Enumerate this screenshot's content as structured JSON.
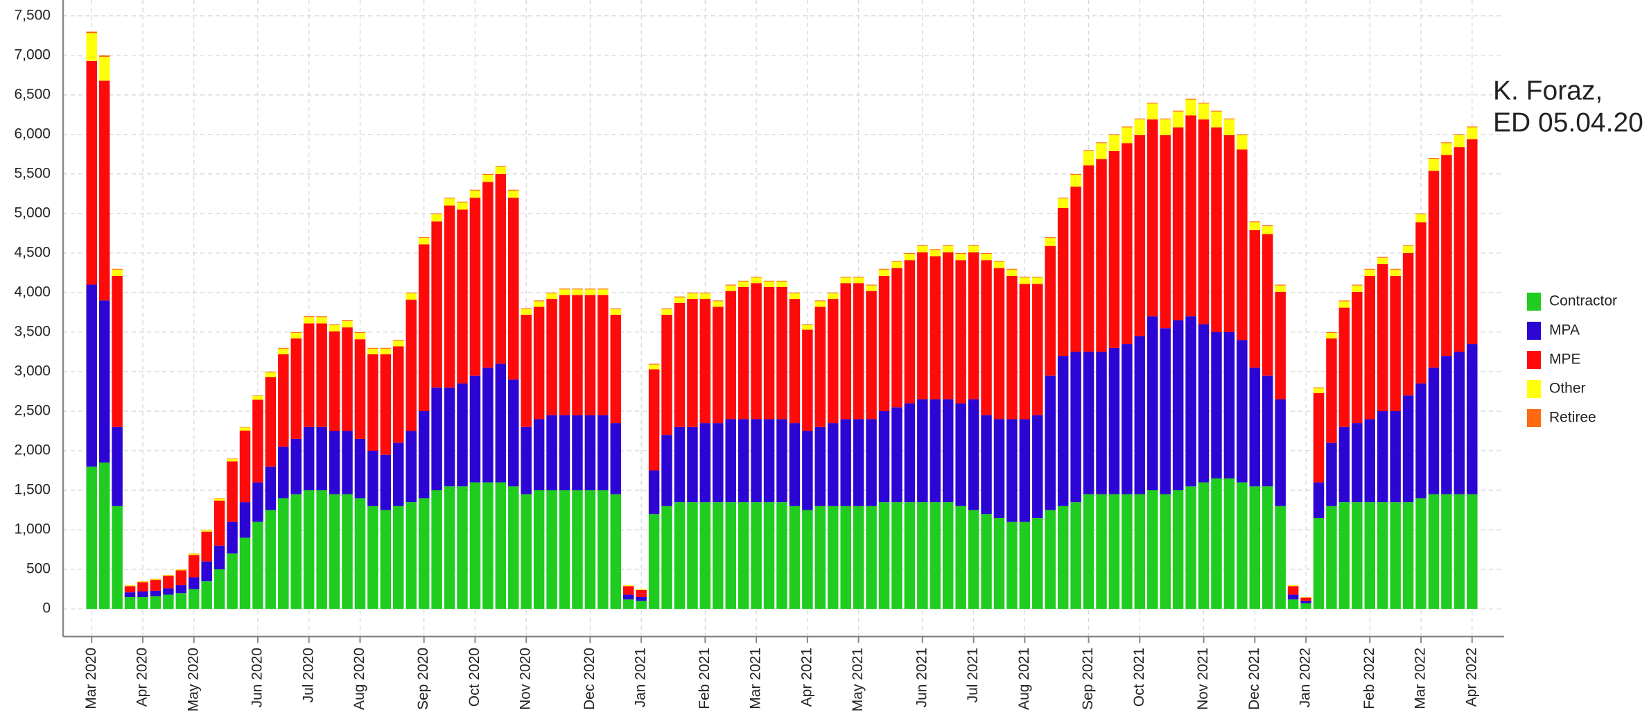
{
  "chart_data": {
    "type": "stacked_bar",
    "title": "K. Foraz,",
    "subtitle": "ED 05.04.20",
    "categories": [
      "Mar 2020",
      null,
      null,
      null,
      "Apr 2020",
      null,
      null,
      null,
      "May 2020",
      null,
      null,
      null,
      null,
      "Jun 2020",
      null,
      null,
      null,
      "Jul 2020",
      null,
      null,
      null,
      "Aug 2020",
      null,
      null,
      null,
      null,
      "Sep 2020",
      null,
      null,
      null,
      "Oct 2020",
      null,
      null,
      null,
      "Nov 2020",
      null,
      null,
      null,
      null,
      "Dec 2020",
      null,
      null,
      null,
      "Jan 2021",
      null,
      null,
      null,
      null,
      "Feb 2021",
      null,
      null,
      null,
      "Mar 2021",
      null,
      null,
      null,
      "Apr 2021",
      null,
      null,
      null,
      "May 2021",
      null,
      null,
      null,
      null,
      "Jun 2021",
      null,
      null,
      null,
      "Jul 2021",
      null,
      null,
      null,
      "Aug 2021",
      null,
      null,
      null,
      null,
      "Sep 2021",
      null,
      null,
      null,
      "Oct 2021",
      null,
      null,
      null,
      null,
      "Nov 2021",
      null,
      null,
      null,
      "Dec 2021",
      null,
      null,
      null,
      "Jan 2022",
      null,
      null,
      null,
      null,
      "Feb 2022",
      null,
      null,
      null,
      "Mar 2022",
      null,
      null,
      null,
      "Apr 2022"
    ],
    "series": [
      {
        "name": "Contractor",
        "color": "#1fcc1f",
        "values": [
          1800,
          1850,
          1300,
          150,
          150,
          160,
          180,
          200,
          250,
          350,
          500,
          700,
          900,
          1100,
          1250,
          1400,
          1450,
          1500,
          1500,
          1450,
          1450,
          1400,
          1300,
          1250,
          1300,
          1350,
          1400,
          1500,
          1550,
          1550,
          1600,
          1600,
          1600,
          1550,
          1450,
          1500,
          1500,
          1500,
          1500,
          1500,
          1500,
          1450,
          120,
          100,
          1200,
          1300,
          1350,
          1350,
          1350,
          1350,
          1350,
          1350,
          1350,
          1350,
          1350,
          1300,
          1250,
          1300,
          1300,
          1300,
          1300,
          1300,
          1350,
          1350,
          1350,
          1350,
          1350,
          1350,
          1300,
          1250,
          1200,
          1150,
          1100,
          1100,
          1150,
          1250,
          1300,
          1350,
          1450,
          1450,
          1450,
          1450,
          1450,
          1500,
          1450,
          1500,
          1550,
          1600,
          1650,
          1650,
          1600,
          1550,
          1550,
          1300,
          120,
          70,
          1150,
          1300,
          1350,
          1350,
          1350,
          1350,
          1350,
          1350,
          1400,
          1450,
          1450,
          1450,
          1450
        ]
      },
      {
        "name": "MPA",
        "color": "#2c05d4",
        "values": [
          2300,
          2050,
          1000,
          60,
          70,
          70,
          80,
          100,
          150,
          250,
          300,
          400,
          450,
          500,
          550,
          650,
          700,
          800,
          800,
          800,
          800,
          750,
          700,
          700,
          800,
          900,
          1100,
          1300,
          1250,
          1300,
          1350,
          1450,
          1500,
          1350,
          850,
          900,
          950,
          950,
          950,
          950,
          950,
          900,
          60,
          50,
          550,
          900,
          950,
          950,
          1000,
          1000,
          1050,
          1050,
          1050,
          1050,
          1050,
          1050,
          1000,
          1000,
          1050,
          1100,
          1100,
          1100,
          1150,
          1200,
          1250,
          1300,
          1300,
          1300,
          1300,
          1400,
          1250,
          1250,
          1300,
          1300,
          1300,
          1700,
          1900,
          1900,
          1800,
          1800,
          1850,
          1900,
          2000,
          2200,
          2100,
          2150,
          2150,
          2000,
          1850,
          1850,
          1800,
          1500,
          1400,
          1350,
          60,
          30,
          450,
          800,
          950,
          1000,
          1050,
          1150,
          1150,
          1350,
          1450,
          1600,
          1750,
          1800,
          1900
        ]
      },
      {
        "name": "MPE",
        "color": "#ff0a0a",
        "values": [
          2830,
          2780,
          1910,
          78,
          118,
          138,
          158,
          188,
          282,
          377,
          570,
          765,
          905,
          1045,
          1130,
          1170,
          1270,
          1310,
          1310,
          1260,
          1310,
          1260,
          1220,
          1270,
          1220,
          1660,
          2110,
          2100,
          2300,
          2200,
          2250,
          2350,
          2400,
          2300,
          1420,
          1420,
          1470,
          1520,
          1520,
          1520,
          1520,
          1370,
          108,
          88,
          1280,
          1520,
          1570,
          1620,
          1570,
          1470,
          1620,
          1670,
          1720,
          1670,
          1670,
          1570,
          1280,
          1520,
          1570,
          1720,
          1720,
          1620,
          1710,
          1760,
          1810,
          1860,
          1810,
          1860,
          1810,
          1860,
          1960,
          1910,
          1810,
          1710,
          1660,
          1640,
          1870,
          2090,
          2360,
          2440,
          2490,
          2540,
          2540,
          2490,
          2440,
          2440,
          2540,
          2590,
          2590,
          2490,
          2410,
          1740,
          1790,
          1360,
          108,
          43,
          1130,
          1320,
          1510,
          1660,
          1810,
          1860,
          1710,
          1800,
          2040,
          2490,
          2540,
          2590,
          2590
        ]
      },
      {
        "name": "Other",
        "color": "#ffff0a",
        "values": [
          350,
          300,
          80,
          10,
          10,
          10,
          10,
          10,
          15,
          20,
          25,
          30,
          40,
          50,
          60,
          70,
          70,
          80,
          80,
          80,
          80,
          80,
          70,
          70,
          70,
          80,
          80,
          90,
          90,
          90,
          90,
          90,
          90,
          90,
          70,
          70,
          70,
          70,
          70,
          70,
          70,
          70,
          10,
          10,
          60,
          70,
          70,
          70,
          70,
          70,
          70,
          70,
          70,
          70,
          70,
          70,
          60,
          70,
          70,
          70,
          70,
          70,
          80,
          80,
          80,
          80,
          80,
          80,
          80,
          80,
          80,
          80,
          80,
          80,
          80,
          100,
          120,
          150,
          180,
          200,
          200,
          200,
          200,
          200,
          200,
          200,
          200,
          200,
          200,
          200,
          180,
          100,
          100,
          80,
          10,
          5,
          60,
          70,
          80,
          80,
          80,
          80,
          80,
          90,
          100,
          150,
          150,
          150,
          150
        ]
      },
      {
        "name": "Retiree",
        "color": "#ff6a10",
        "values": [
          20,
          20,
          10,
          2,
          2,
          2,
          2,
          2,
          3,
          3,
          5,
          5,
          5,
          5,
          10,
          10,
          10,
          10,
          10,
          10,
          10,
          10,
          10,
          10,
          10,
          10,
          10,
          10,
          10,
          10,
          10,
          10,
          10,
          10,
          10,
          10,
          10,
          10,
          10,
          10,
          10,
          10,
          2,
          2,
          10,
          10,
          10,
          10,
          10,
          10,
          10,
          10,
          10,
          10,
          10,
          10,
          10,
          10,
          10,
          10,
          10,
          10,
          10,
          10,
          10,
          10,
          10,
          10,
          10,
          10,
          10,
          10,
          10,
          10,
          10,
          10,
          10,
          10,
          10,
          10,
          10,
          10,
          10,
          10,
          10,
          10,
          10,
          10,
          10,
          10,
          10,
          10,
          10,
          10,
          2,
          2,
          10,
          10,
          10,
          10,
          10,
          10,
          10,
          10,
          10,
          10,
          10,
          10,
          10
        ]
      }
    ],
    "ylim": [
      -350,
      7700
    ],
    "yticks": [
      0,
      500,
      {
        "value": 1000,
        "label": "1,000"
      },
      {
        "value": 1500,
        "label": "1,500"
      },
      {
        "value": 2000,
        "label": "2,000"
      },
      {
        "value": 2500,
        "label": "2,500"
      },
      {
        "value": 3000,
        "label": "3,000"
      },
      {
        "value": 3500,
        "label": "3,500"
      },
      {
        "value": 4000,
        "label": "4,000"
      },
      {
        "value": 4500,
        "label": "4,500"
      },
      {
        "value": 5000,
        "label": "5,000"
      },
      {
        "value": 5500,
        "label": "5,500"
      },
      {
        "value": 6000,
        "label": "6,000"
      },
      {
        "value": 6500,
        "label": "6,500"
      },
      {
        "value": 7000,
        "label": "7,000"
      },
      {
        "value": 7500,
        "label": "7,500"
      }
    ],
    "grid": true,
    "legend": "right"
  }
}
